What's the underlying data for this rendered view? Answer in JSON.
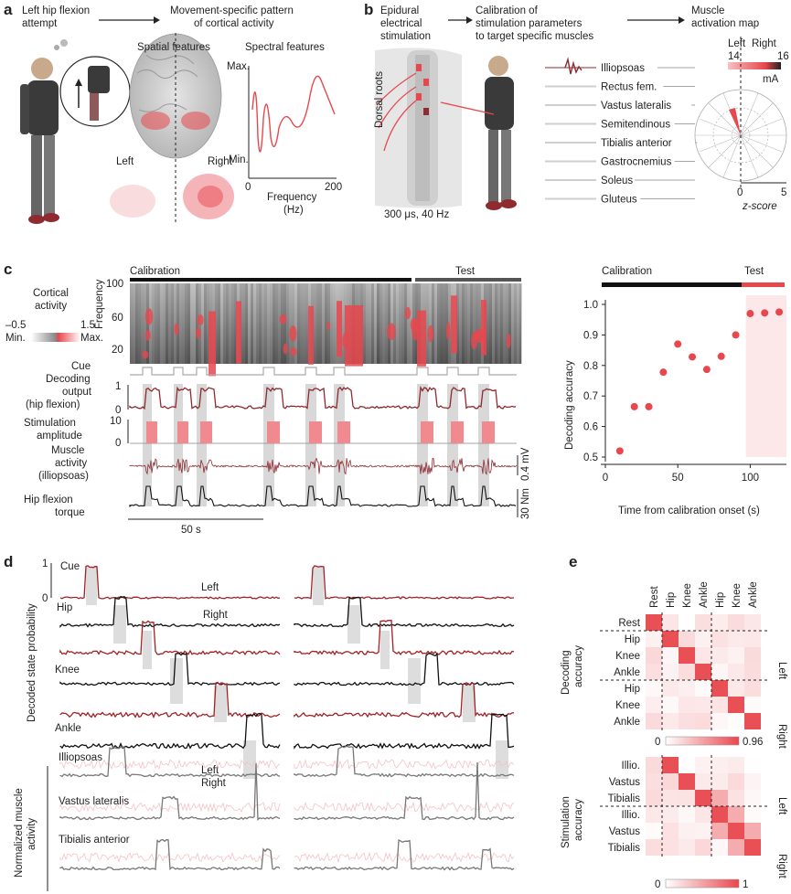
{
  "panel_letters": [
    "a",
    "b",
    "c",
    "d",
    "e"
  ],
  "panel_a": {
    "attempt": [
      "Left hip flexion",
      "attempt"
    ],
    "pattern_title": [
      "Movement-specific pattern",
      "of cortical activity"
    ],
    "spatial_title": "Spatial features",
    "spectral_title": "Spectral features",
    "max": "Max.",
    "min": "Min.",
    "left": "Left",
    "right": "Right",
    "freq_label": [
      "Frequency",
      "(Hz)"
    ],
    "ticks": [
      "0",
      "200"
    ]
  },
  "panel_b": {
    "ees": [
      "Epidural",
      "electrical",
      "stimulation"
    ],
    "calib": [
      "Calibration of",
      "stimulation parameters",
      "to target specific muscles"
    ],
    "map_title": [
      "Muscle",
      "activation map"
    ],
    "dorsal": "Dorsal roots",
    "param": "300 μs, 40 Hz",
    "left": "Left",
    "right": "Right",
    "ma_ticks": [
      "14",
      "16"
    ],
    "ma_unit": "mA",
    "muscles": [
      "Illiopsoas",
      "Rectus fem.",
      "Vastus lateralis",
      "Semitendinous",
      "Tibialis anterior",
      "Gastrocnemius",
      "Soleus",
      "Gluteus"
    ],
    "z_ticks": [
      "0",
      "5"
    ],
    "z_label": "z-score",
    "accent": "#e8474d"
  },
  "panel_c": {
    "calibration": "Calibration",
    "test": "Test",
    "rows": {
      "cortical": [
        "Cortical",
        "activity"
      ],
      "cmin": "–0.5",
      "cmax": "1.5",
      "cmin2": "Min.",
      "cmax2": "Max.",
      "cue": "Cue",
      "decoding": [
        "Decoding",
        "output",
        "(hip flexion)"
      ],
      "stim": [
        "Stimulation",
        "amplitude"
      ],
      "muscle": [
        "Muscle",
        "activity",
        "(illiopsoas)"
      ],
      "torque": [
        "Hip flexion",
        "torque"
      ]
    },
    "freq_axis": "Frequency",
    "freq_ticks": [
      "100",
      "60",
      "20"
    ],
    "dec_ticks": [
      "1",
      "0"
    ],
    "stim_ticks": [
      "10",
      "0"
    ],
    "scale_time": "50 s",
    "scale_emg": "0.4 mV",
    "scale_torque": "30 Nm"
  },
  "chart_data": {
    "type": "scatter",
    "xlabel": "Time from calibration onset (s)",
    "ylabel": "Decoding accuracy",
    "xlim": [
      0,
      125
    ],
    "ylim": [
      0.5,
      1.0
    ],
    "xticks": [
      0,
      50,
      100
    ],
    "yticks": [
      0.5,
      0.6,
      0.7,
      0.8,
      0.9,
      1.0
    ],
    "x": [
      10,
      20,
      30,
      40,
      50,
      60,
      70,
      80,
      90,
      100,
      110,
      120
    ],
    "y": [
      0.52,
      0.665,
      0.665,
      0.778,
      0.87,
      0.828,
      0.787,
      0.83,
      0.9,
      0.97,
      0.972,
      0.975
    ],
    "test_start": 97,
    "phase_labels": [
      "Calibration",
      "Test"
    ],
    "color": "#e8474d"
  },
  "panel_d": {
    "cue": "Cue",
    "y1": "1",
    "y0": "0",
    "left": "Left",
    "right": "Right",
    "joints": [
      "Hip",
      "Knee",
      "Ankle"
    ],
    "ylab": "Decoded state probability",
    "ylab2": [
      "Normalized muscle",
      "activity"
    ],
    "muscles": [
      "Illiopsoas",
      "Vastus lateralis",
      "Tibialis anterior"
    ]
  },
  "panel_e": {
    "cols": [
      "Rest",
      "Hip",
      "Knee",
      "Ankle",
      "Hip",
      "Knee",
      "Ankle"
    ],
    "rows1": [
      "Rest",
      "Hip",
      "Knee",
      "Ankle",
      "Hip",
      "Knee",
      "Ankle"
    ],
    "rows2": [
      "Illio.",
      "Vastus",
      "Tibialis",
      "Illio.",
      "Vastus",
      "Tibialis"
    ],
    "ylab1": [
      "Decoding",
      "accuracy"
    ],
    "ylab2": [
      "Stimulation",
      "accuracy"
    ],
    "left": "Left",
    "right": "Right",
    "cb1": [
      "0",
      "0.96"
    ],
    "cb2": [
      "0",
      "1"
    ]
  }
}
